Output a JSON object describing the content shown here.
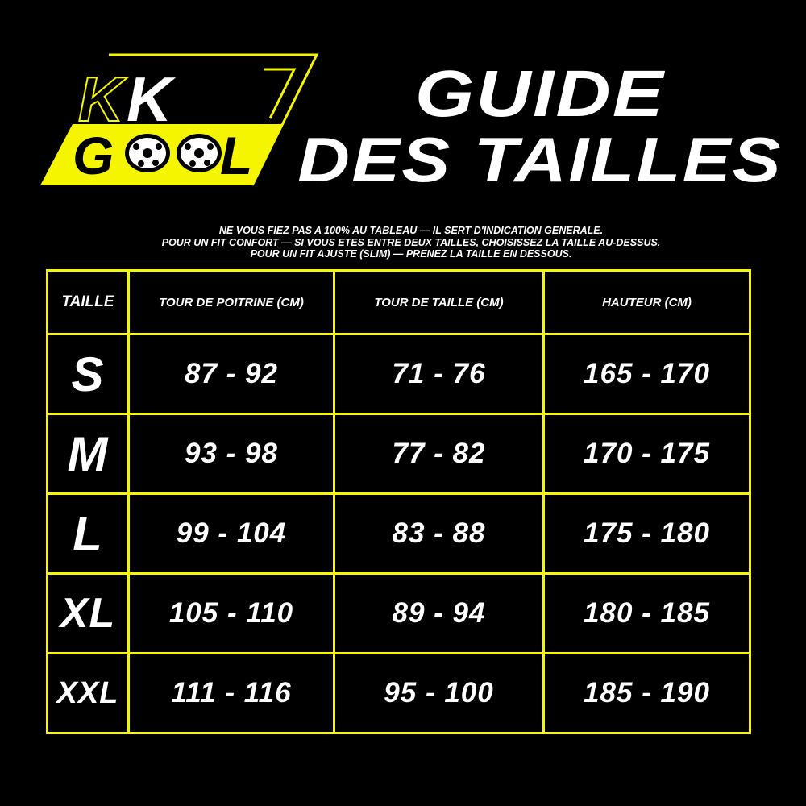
{
  "logo": {
    "line1": "KK",
    "line2": "GOOL",
    "colors": {
      "accent": "#f5f500",
      "text": "#ffffff"
    }
  },
  "title": {
    "line1": "GUIDE",
    "line2": "DES TAILLES"
  },
  "notes": [
    "Ne vous fiez pas a 100% au tableau — il sert d'indication generale.",
    "Pour un fit confort — si vous etes entre deux tailles, choisissez la taille au-dessus.",
    "Pour un fit ajuste (slim) — prenez la taille en dessous."
  ],
  "table": {
    "headers": [
      "Taille",
      "Tour de poitrine (cm)",
      "Tour de taille (cm)",
      "Hauteur (cm)"
    ],
    "rows": [
      {
        "size": "S",
        "chest": "87 - 92",
        "waist": "71 - 76",
        "height": "165 - 170"
      },
      {
        "size": "M",
        "chest": "93 - 98",
        "waist": "77 - 82",
        "height": "170 - 175"
      },
      {
        "size": "L",
        "chest": "99 - 104",
        "waist": "83 - 88",
        "height": "175 - 180"
      },
      {
        "size": "XL",
        "chest": "105 - 110",
        "waist": "89 - 94",
        "height": "180 - 185"
      },
      {
        "size": "XXL",
        "chest": "111 - 116",
        "waist": "95 - 100",
        "height": "185 - 190"
      }
    ]
  },
  "colors": {
    "border": "#f5f500",
    "background": "#000000"
  }
}
